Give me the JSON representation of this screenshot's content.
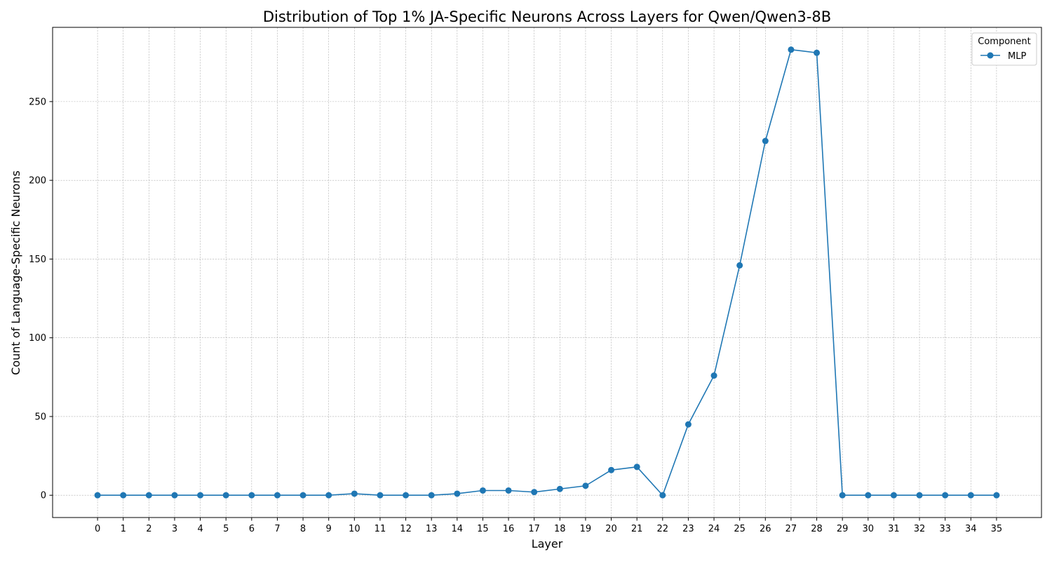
{
  "chart_data": {
    "type": "line",
    "title": "Distribution of Top 1% JA-Specific Neurons Across Layers for Qwen/Qwen3-8B",
    "xlabel": "Layer",
    "ylabel": "Count of Language-Specific Neurons",
    "x": [
      0,
      1,
      2,
      3,
      4,
      5,
      6,
      7,
      8,
      9,
      10,
      11,
      12,
      13,
      14,
      15,
      16,
      17,
      18,
      19,
      20,
      21,
      22,
      23,
      24,
      25,
      26,
      27,
      28,
      29,
      30,
      31,
      32,
      33,
      34,
      35
    ],
    "series": [
      {
        "name": "MLP",
        "color": "#1f77b4",
        "values": [
          0,
          0,
          0,
          0,
          0,
          0,
          0,
          0,
          0,
          0,
          1,
          0,
          0,
          0,
          1,
          3,
          3,
          2,
          4,
          6,
          16,
          18,
          0,
          45,
          76,
          146,
          225,
          283,
          281,
          0,
          0,
          0,
          0,
          0,
          0,
          0
        ]
      }
    ],
    "xlim": [
      -1.75,
      36.75
    ],
    "ylim": [
      -14.15,
      297.15
    ],
    "yticks": [
      0,
      50,
      100,
      150,
      200,
      250
    ],
    "grid": true,
    "legend": {
      "title": "Component",
      "placement": "top-right"
    }
  }
}
